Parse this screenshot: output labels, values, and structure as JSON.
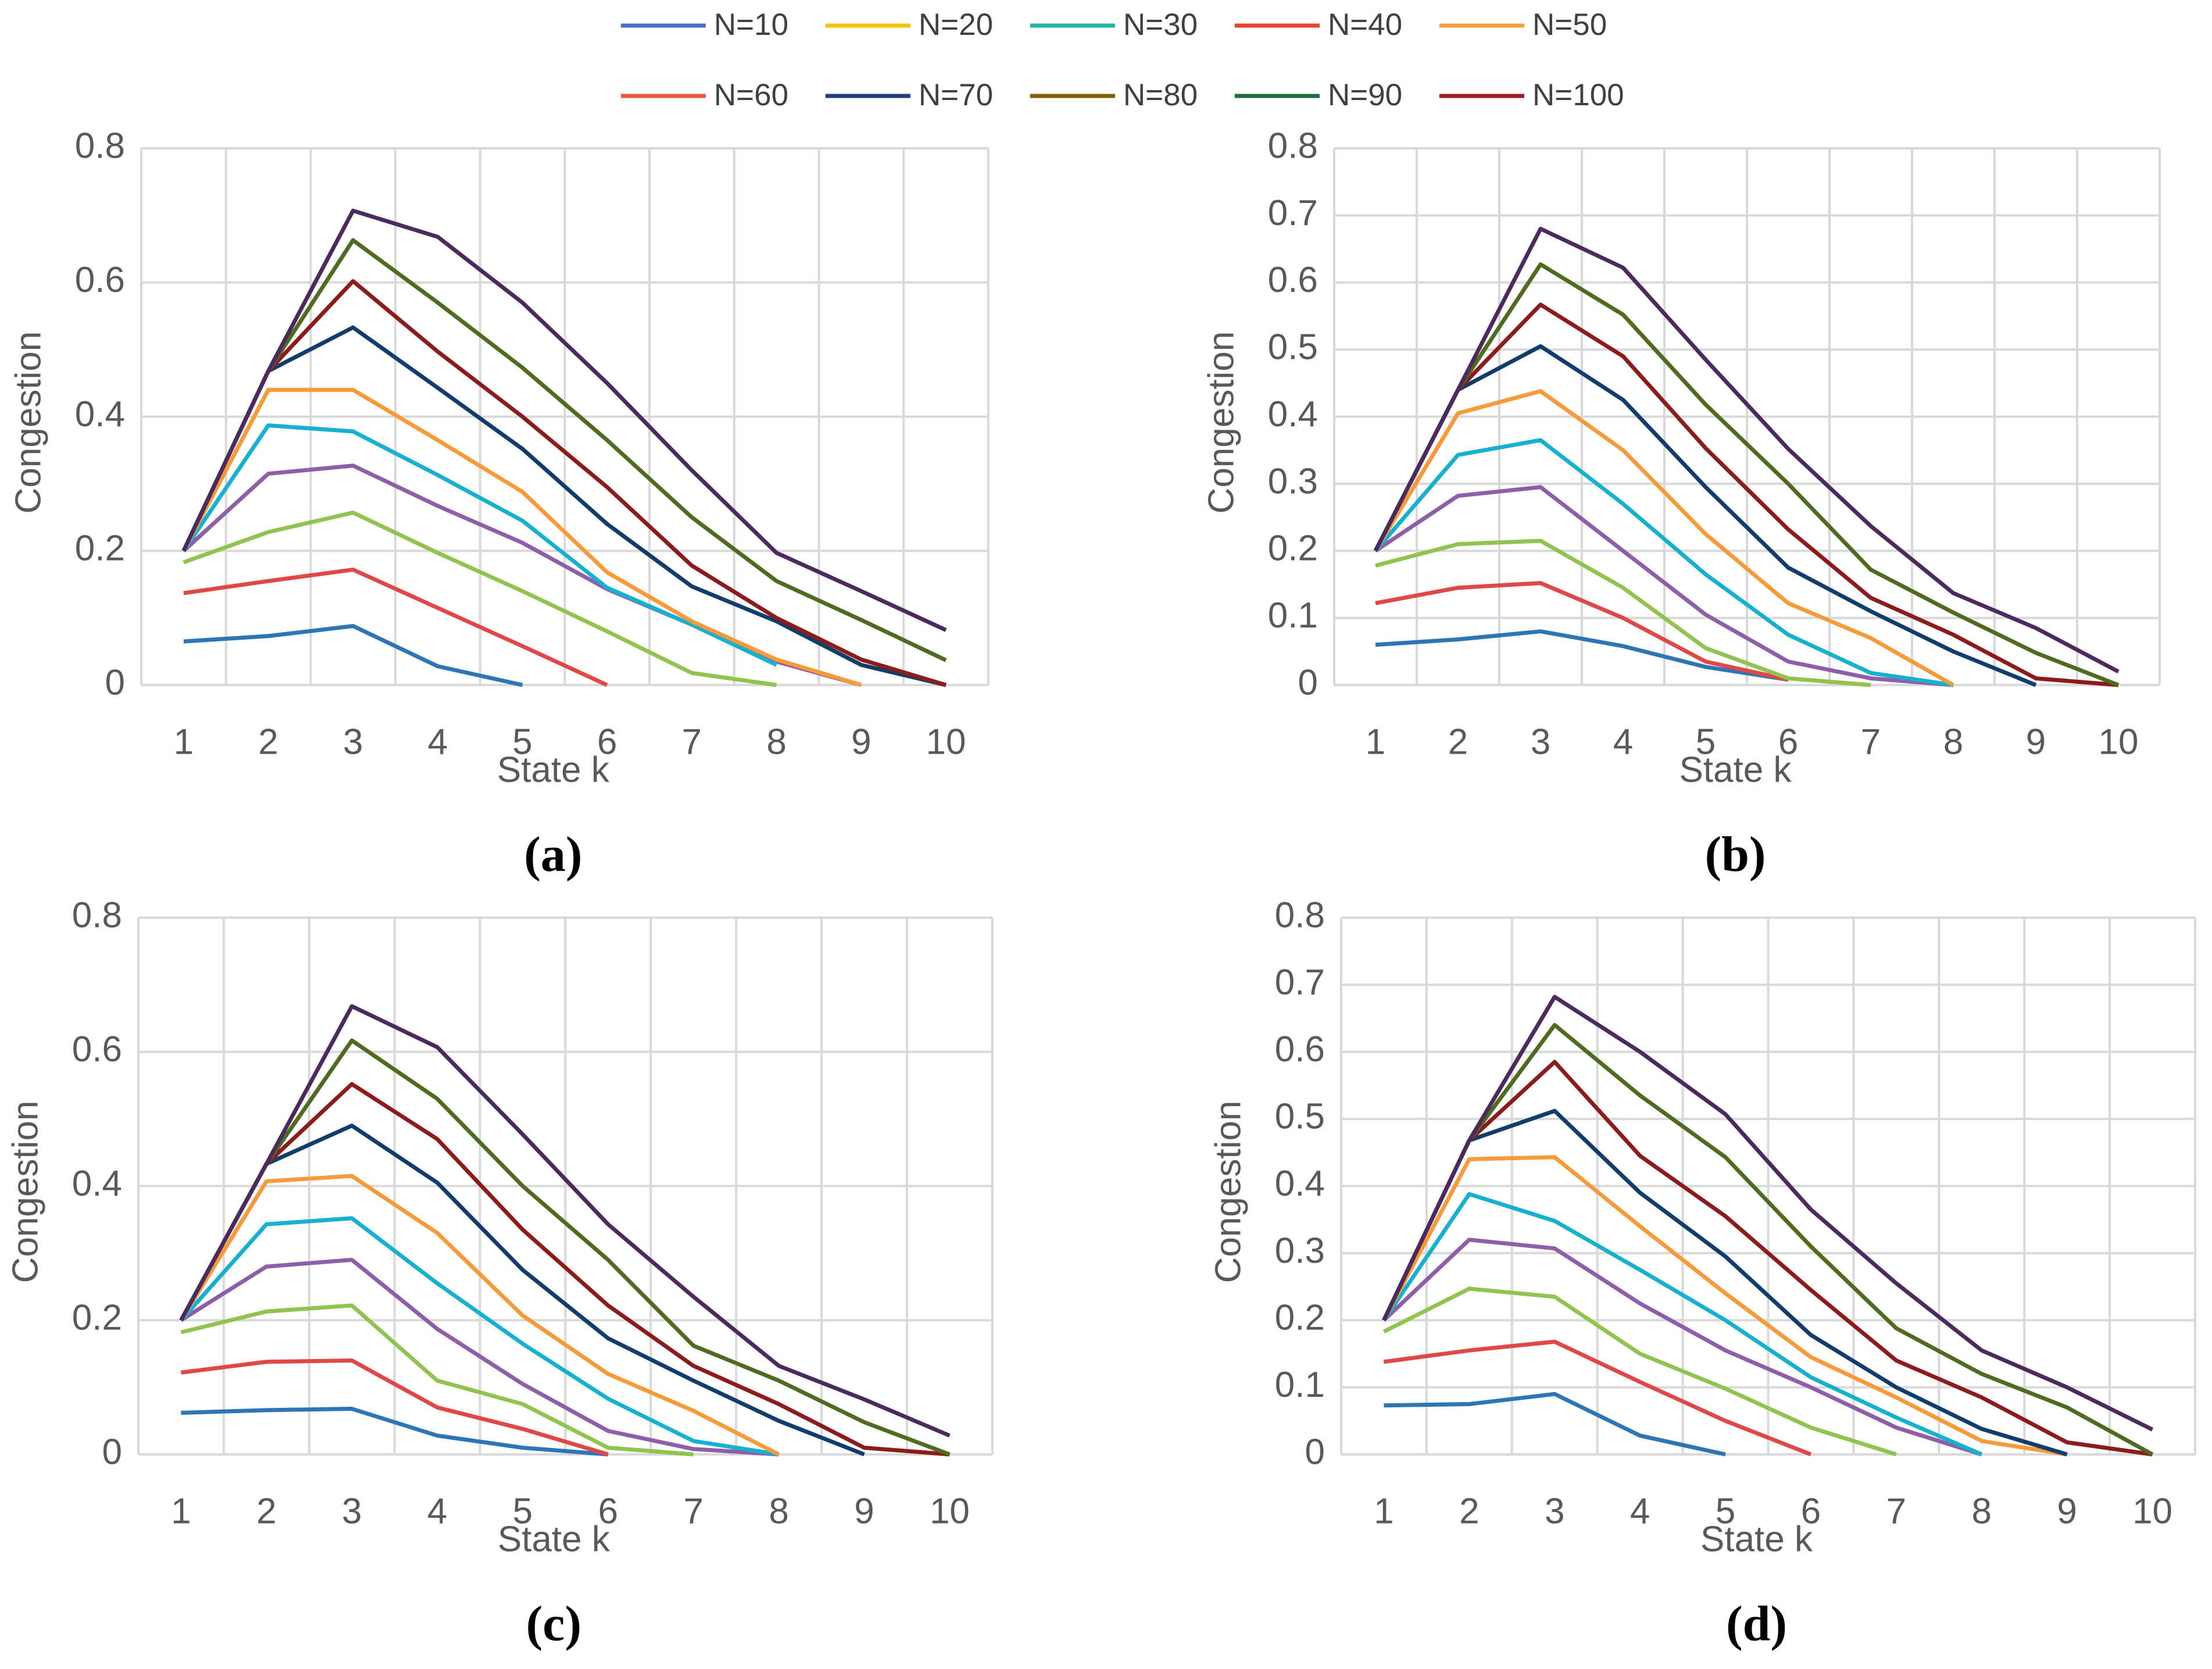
{
  "legend": [
    {
      "name": "N=10",
      "color": "#4472c4"
    },
    {
      "name": "N=20",
      "color": "#ffc000"
    },
    {
      "name": "N=30",
      "color": "#1fb5a3"
    },
    {
      "name": "N=40",
      "color": "#e8442e"
    },
    {
      "name": "N=50",
      "color": "#f4a03a"
    },
    {
      "name": "N=60",
      "color": "#e65a3c"
    },
    {
      "name": "N=70",
      "color": "#203f7a"
    },
    {
      "name": "N=80",
      "color": "#7f6000"
    },
    {
      "name": "N=90",
      "color": "#1e6b3e"
    },
    {
      "name": "N=100",
      "color": "#a11d1d"
    }
  ],
  "chart_data": [
    {
      "type": "line",
      "label": "(a)",
      "x_label": "State k",
      "y_label": "Congestion",
      "categories": [
        "1",
        "2",
        "3",
        "4",
        "5",
        "6",
        "7",
        "8",
        "9",
        "10"
      ],
      "ylim": [
        0,
        0.8
      ],
      "yticks": [
        0,
        0.2,
        0.4,
        0.6,
        0.8
      ],
      "grid": true,
      "series": [
        {
          "color": "#2e75b6",
          "values": [
            0.065,
            0.073,
            0.088,
            0.028,
            0,
            null,
            null,
            null,
            null,
            null
          ]
        },
        {
          "color": "#e04848",
          "values": [
            0.137,
            0.155,
            0.172,
            0.115,
            0.058,
            0,
            null,
            null,
            null,
            null
          ]
        },
        {
          "color": "#92c350",
          "values": [
            0.183,
            0.228,
            0.257,
            0.197,
            0.14,
            0.08,
            0.018,
            0,
            null,
            null
          ]
        },
        {
          "color": "#8e5fa8",
          "values": [
            0.2,
            0.315,
            0.327,
            0.267,
            0.212,
            0.143,
            0.09,
            0.035,
            0,
            null
          ]
        },
        {
          "color": "#17b0cf",
          "values": [
            0.2,
            0.387,
            0.378,
            0.313,
            0.245,
            0.145,
            0.09,
            0.03,
            null,
            null
          ]
        },
        {
          "color": "#f79a3a",
          "values": [
            0.2,
            0.44,
            0.44,
            0.365,
            0.288,
            0.168,
            0.095,
            0.038,
            0,
            null
          ]
        },
        {
          "color": "#103d6b",
          "values": [
            0.2,
            0.468,
            0.533,
            0.443,
            0.352,
            0.24,
            0.147,
            0.095,
            0.03,
            0
          ]
        },
        {
          "color": "#8c1c1c",
          "values": [
            0.2,
            0.468,
            0.602,
            0.497,
            0.4,
            0.295,
            0.178,
            0.1,
            0.038,
            0
          ]
        },
        {
          "color": "#4f6b1f",
          "values": [
            0.2,
            0.468,
            0.663,
            0.57,
            0.473,
            0.365,
            0.25,
            0.155,
            0.097,
            0.037
          ]
        },
        {
          "color": "#4b2a5e",
          "values": [
            0.2,
            0.468,
            0.707,
            0.668,
            0.57,
            0.45,
            0.32,
            0.197,
            0.14,
            0.082
          ]
        }
      ]
    },
    {
      "type": "line",
      "label": "(b)",
      "x_label": "State k",
      "y_label": "Congestion",
      "categories": [
        "1",
        "2",
        "3",
        "4",
        "5",
        "6",
        "7",
        "8",
        "9",
        "10"
      ],
      "ylim": [
        0,
        0.8
      ],
      "yticks": [
        0,
        0.1,
        0.2,
        0.3,
        0.4,
        0.5,
        0.6,
        0.7,
        0.8
      ],
      "grid": true,
      "series": [
        {
          "color": "#2e75b6",
          "values": [
            0.06,
            0.068,
            0.08,
            0.058,
            0.027,
            0.008,
            null,
            null,
            null,
            null
          ]
        },
        {
          "color": "#e04848",
          "values": [
            0.122,
            0.145,
            0.152,
            0.1,
            0.035,
            0.008,
            null,
            null,
            null,
            null
          ]
        },
        {
          "color": "#92c350",
          "values": [
            0.178,
            0.21,
            0.215,
            0.145,
            0.055,
            0.01,
            0,
            null,
            null,
            null
          ]
        },
        {
          "color": "#8e5fa8",
          "values": [
            0.2,
            0.282,
            0.295,
            0.2,
            0.105,
            0.035,
            0.01,
            0,
            null,
            null
          ]
        },
        {
          "color": "#17b0cf",
          "values": [
            0.2,
            0.343,
            0.365,
            0.27,
            0.165,
            0.075,
            0.018,
            0,
            null,
            null
          ]
        },
        {
          "color": "#f79a3a",
          "values": [
            0.2,
            0.405,
            0.438,
            0.35,
            0.225,
            0.122,
            0.07,
            0,
            null,
            null
          ]
        },
        {
          "color": "#103d6b",
          "values": [
            0.2,
            0.44,
            0.505,
            0.425,
            0.295,
            0.175,
            0.11,
            0.05,
            0,
            null
          ]
        },
        {
          "color": "#8c1c1c",
          "values": [
            0.2,
            0.44,
            0.567,
            0.49,
            0.353,
            0.232,
            0.13,
            0.075,
            0.01,
            0
          ]
        },
        {
          "color": "#4f6b1f",
          "values": [
            0.2,
            0.44,
            0.627,
            0.552,
            0.418,
            0.3,
            0.172,
            0.108,
            0.048,
            0
          ]
        },
        {
          "color": "#4b2a5e",
          "values": [
            0.2,
            0.44,
            0.68,
            0.622,
            0.485,
            0.352,
            0.237,
            0.137,
            0.085,
            0.02
          ]
        }
      ]
    },
    {
      "type": "line",
      "label": "(c)",
      "x_label": "State k",
      "y_label": "Congestion",
      "categories": [
        "1",
        "2",
        "3",
        "4",
        "5",
        "6",
        "7",
        "8",
        "9",
        "10"
      ],
      "ylim": [
        0,
        0.8
      ],
      "yticks": [
        0,
        0.2,
        0.4,
        0.6,
        0.8
      ],
      "grid": true,
      "series": [
        {
          "color": "#2e75b6",
          "values": [
            0.062,
            0.066,
            0.068,
            0.028,
            0.01,
            0,
            null,
            null,
            null,
            null
          ]
        },
        {
          "color": "#e04848",
          "values": [
            0.122,
            0.138,
            0.14,
            0.07,
            0.038,
            0,
            null,
            null,
            null,
            null
          ]
        },
        {
          "color": "#92c350",
          "values": [
            0.182,
            0.213,
            0.222,
            0.11,
            0.075,
            0.01,
            0,
            null,
            null,
            null
          ]
        },
        {
          "color": "#8e5fa8",
          "values": [
            0.2,
            0.28,
            0.29,
            0.187,
            0.105,
            0.035,
            0.008,
            0,
            null,
            null
          ]
        },
        {
          "color": "#17b0cf",
          "values": [
            0.2,
            0.343,
            0.352,
            0.255,
            0.165,
            0.083,
            0.02,
            0,
            null,
            null
          ]
        },
        {
          "color": "#f79a3a",
          "values": [
            0.2,
            0.407,
            0.415,
            0.33,
            0.207,
            0.12,
            0.065,
            0,
            null,
            null
          ]
        },
        {
          "color": "#103d6b",
          "values": [
            0.2,
            0.433,
            0.49,
            0.405,
            0.275,
            0.173,
            0.11,
            0.05,
            0,
            null
          ]
        },
        {
          "color": "#8c1c1c",
          "values": [
            0.2,
            0.433,
            0.552,
            0.47,
            0.335,
            0.222,
            0.132,
            0.075,
            0.01,
            0
          ]
        },
        {
          "color": "#4f6b1f",
          "values": [
            0.2,
            0.433,
            0.617,
            0.53,
            0.4,
            0.29,
            0.162,
            0.11,
            0.048,
            0
          ]
        },
        {
          "color": "#4b2a5e",
          "values": [
            0.2,
            0.433,
            0.668,
            0.607,
            0.477,
            0.343,
            0.235,
            0.132,
            0.082,
            0.028
          ]
        }
      ]
    },
    {
      "type": "line",
      "label": "(d)",
      "x_label": "State k",
      "y_label": "Congestion",
      "categories": [
        "1",
        "2",
        "3",
        "4",
        "5",
        "6",
        "7",
        "8",
        "9",
        "10"
      ],
      "ylim": [
        0,
        0.8
      ],
      "yticks": [
        0,
        0.1,
        0.2,
        0.3,
        0.4,
        0.5,
        0.6,
        0.7,
        0.8
      ],
      "grid": true,
      "series": [
        {
          "color": "#2e75b6",
          "values": [
            0.073,
            0.075,
            0.09,
            0.028,
            0,
            null,
            null,
            null,
            null,
            null
          ]
        },
        {
          "color": "#e04848",
          "values": [
            0.138,
            0.155,
            0.168,
            0.108,
            0.05,
            0,
            null,
            null,
            null,
            null
          ]
        },
        {
          "color": "#92c350",
          "values": [
            0.183,
            0.247,
            0.235,
            0.15,
            0.098,
            0.04,
            0,
            null,
            null,
            null
          ]
        },
        {
          "color": "#8e5fa8",
          "values": [
            0.2,
            0.32,
            0.307,
            0.225,
            0.155,
            0.1,
            0.04,
            0,
            null,
            null
          ]
        },
        {
          "color": "#17b0cf",
          "values": [
            0.2,
            0.388,
            0.348,
            0.275,
            0.2,
            0.115,
            0.055,
            0,
            null,
            null
          ]
        },
        {
          "color": "#f79a3a",
          "values": [
            0.2,
            0.44,
            0.443,
            0.34,
            0.24,
            0.145,
            0.085,
            0.02,
            0,
            null
          ]
        },
        {
          "color": "#103d6b",
          "values": [
            0.2,
            0.468,
            0.512,
            0.39,
            0.295,
            0.178,
            0.1,
            0.038,
            0,
            null
          ]
        },
        {
          "color": "#8c1c1c",
          "values": [
            0.2,
            0.468,
            0.585,
            0.445,
            0.355,
            0.245,
            0.14,
            0.085,
            0.018,
            0
          ]
        },
        {
          "color": "#4f6b1f",
          "values": [
            0.2,
            0.468,
            0.64,
            0.535,
            0.443,
            0.31,
            0.188,
            0.12,
            0.07,
            0
          ]
        },
        {
          "color": "#4b2a5e",
          "values": [
            0.2,
            0.468,
            0.682,
            0.6,
            0.507,
            0.365,
            0.255,
            0.155,
            0.1,
            0.037
          ]
        }
      ]
    }
  ]
}
